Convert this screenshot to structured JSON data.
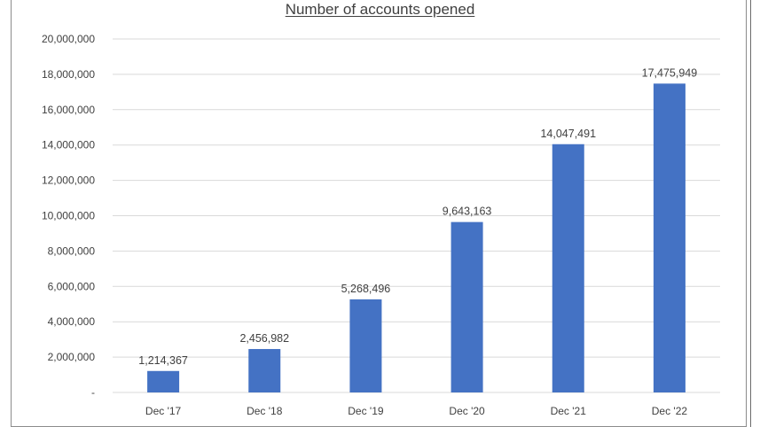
{
  "chart_data": {
    "type": "bar",
    "title": "Number of accounts opened",
    "xlabel": "",
    "ylabel": "",
    "categories": [
      "Dec '17",
      "Dec '18",
      "Dec '19",
      "Dec '20",
      "Dec '21",
      "Dec '22"
    ],
    "values": [
      1214367,
      2456982,
      5268496,
      9643163,
      14047491,
      17475949
    ],
    "data_labels": [
      "1,214,367",
      "2,456,982",
      "5,268,496",
      "9,643,163",
      "14,047,491",
      "17,475,949"
    ],
    "ylim": [
      0,
      20000000
    ],
    "y_ticks": [
      0,
      2000000,
      4000000,
      6000000,
      8000000,
      10000000,
      12000000,
      14000000,
      16000000,
      18000000,
      20000000
    ],
    "y_tick_labels": [
      "-",
      "2,000,000",
      "4,000,000",
      "6,000,000",
      "8,000,000",
      "10,000,000",
      "12,000,000",
      "14,000,000",
      "16,000,000",
      "18,000,000",
      "20,000,000"
    ],
    "grid": true,
    "legend": "none",
    "colors": {
      "bar": "#4472c4",
      "grid": "#d9d9d9",
      "text": "#404040"
    }
  }
}
